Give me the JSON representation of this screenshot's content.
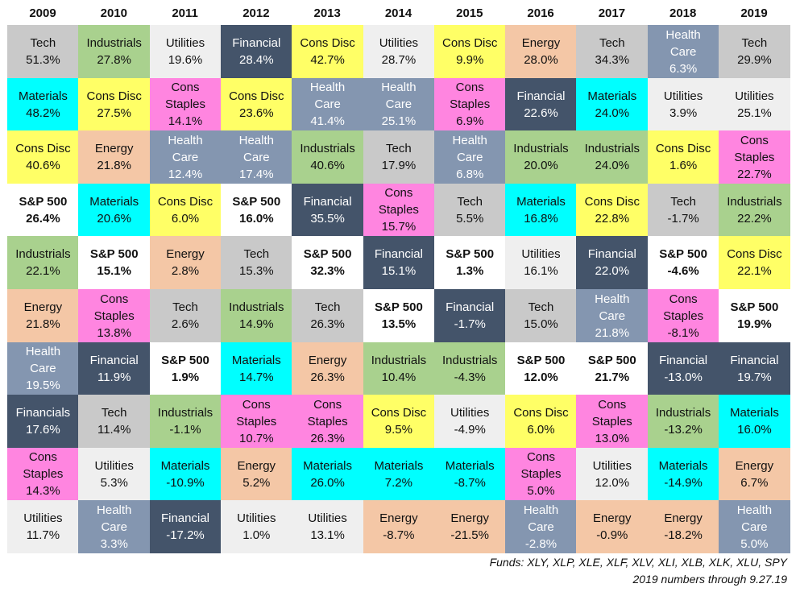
{
  "chart_data": {
    "type": "table",
    "years": [
      "2009",
      "2010",
      "2011",
      "2012",
      "2013",
      "2014",
      "2015",
      "2016",
      "2017",
      "2018",
      "2019"
    ],
    "colors": {
      "Tech": "#c9c9c9",
      "Industrials": "#a9d18e",
      "Utilities": "#efefef",
      "Financial": "#44546a",
      "Cons Disc": "#ffff66",
      "Energy": "#f4c7a6",
      "Health Care": "#8496b0",
      "Materials": "#00ffff",
      "Cons Staples": "#ff85e0",
      "S&P 500": "#ffffff"
    },
    "columns": [
      [
        {
          "sector": "Tech",
          "return": "51.3%",
          "color_key": "Tech"
        },
        {
          "sector": "Materials",
          "return": "48.2%",
          "color_key": "Materials"
        },
        {
          "sector": "Cons Disc",
          "return": "40.6%",
          "color_key": "Cons Disc"
        },
        {
          "sector": "S&P 500",
          "return": "26.4%",
          "color_key": "S&P 500"
        },
        {
          "sector": "Industrials",
          "return": "22.1%",
          "color_key": "Industrials"
        },
        {
          "sector": "Energy",
          "return": "21.8%",
          "color_key": "Energy"
        },
        {
          "sector": "Health\nCare",
          "return": "19.5%",
          "color_key": "Health Care"
        },
        {
          "sector": "Financials",
          "return": "17.6%",
          "color_key": "Financial"
        },
        {
          "sector": "Cons\nStaples",
          "return": "14.3%",
          "color_key": "Cons Staples"
        },
        {
          "sector": "Utilities",
          "return": "11.7%",
          "color_key": "Utilities"
        }
      ],
      [
        {
          "sector": "Industrials",
          "return": "27.8%",
          "color_key": "Industrials"
        },
        {
          "sector": "Cons Disc",
          "return": "27.5%",
          "color_key": "Cons Disc"
        },
        {
          "sector": "Energy",
          "return": "21.8%",
          "color_key": "Energy"
        },
        {
          "sector": "Materials",
          "return": "20.6%",
          "color_key": "Materials"
        },
        {
          "sector": "S&P 500",
          "return": "15.1%",
          "color_key": "S&P 500"
        },
        {
          "sector": "Cons\nStaples",
          "return": "13.8%",
          "color_key": "Cons Staples"
        },
        {
          "sector": "Financial",
          "return": "11.9%",
          "color_key": "Financial"
        },
        {
          "sector": "Tech",
          "return": "11.4%",
          "color_key": "Tech"
        },
        {
          "sector": "Utilities",
          "return": "5.3%",
          "color_key": "Utilities"
        },
        {
          "sector": "Health\nCare",
          "return": "3.3%",
          "color_key": "Health Care"
        }
      ],
      [
        {
          "sector": "Utilities",
          "return": "19.6%",
          "color_key": "Utilities"
        },
        {
          "sector": "Cons\nStaples",
          "return": "14.1%",
          "color_key": "Cons Staples"
        },
        {
          "sector": "Health\nCare",
          "return": "12.4%",
          "color_key": "Health Care"
        },
        {
          "sector": "Cons Disc",
          "return": "6.0%",
          "color_key": "Cons Disc"
        },
        {
          "sector": "Energy",
          "return": "2.8%",
          "color_key": "Energy"
        },
        {
          "sector": "Tech",
          "return": "2.6%",
          "color_key": "Tech"
        },
        {
          "sector": "S&P 500",
          "return": "1.9%",
          "color_key": "S&P 500"
        },
        {
          "sector": "Industrials",
          "return": "-1.1%",
          "color_key": "Industrials"
        },
        {
          "sector": "Materials",
          "return": "-10.9%",
          "color_key": "Materials"
        },
        {
          "sector": "Financial",
          "return": "-17.2%",
          "color_key": "Financial"
        }
      ],
      [
        {
          "sector": "Financial",
          "return": "28.4%",
          "color_key": "Financial"
        },
        {
          "sector": "Cons Disc",
          "return": "23.6%",
          "color_key": "Cons Disc"
        },
        {
          "sector": "Health\nCare",
          "return": "17.4%",
          "color_key": "Health Care"
        },
        {
          "sector": "S&P 500",
          "return": "16.0%",
          "color_key": "S&P 500"
        },
        {
          "sector": "Tech",
          "return": "15.3%",
          "color_key": "Tech"
        },
        {
          "sector": "Industrials",
          "return": "14.9%",
          "color_key": "Industrials"
        },
        {
          "sector": "Materials",
          "return": "14.7%",
          "color_key": "Materials"
        },
        {
          "sector": "Cons\nStaples",
          "return": "10.7%",
          "color_key": "Cons Staples"
        },
        {
          "sector": "Energy",
          "return": "5.2%",
          "color_key": "Energy"
        },
        {
          "sector": "Utilities",
          "return": "1.0%",
          "color_key": "Utilities"
        }
      ],
      [
        {
          "sector": "Cons Disc",
          "return": "42.7%",
          "color_key": "Cons Disc"
        },
        {
          "sector": "Health\nCare",
          "return": "41.4%",
          "color_key": "Health Care"
        },
        {
          "sector": "Industrials",
          "return": "40.6%",
          "color_key": "Industrials"
        },
        {
          "sector": "Financial",
          "return": "35.5%",
          "color_key": "Financial"
        },
        {
          "sector": "S&P 500",
          "return": "32.3%",
          "color_key": "S&P 500"
        },
        {
          "sector": "Tech",
          "return": "26.3%",
          "color_key": "Tech"
        },
        {
          "sector": "Energy",
          "return": "26.3%",
          "color_key": "Energy"
        },
        {
          "sector": "Cons\nStaples",
          "return": "26.3%",
          "color_key": "Cons Staples"
        },
        {
          "sector": "Materials",
          "return": "26.0%",
          "color_key": "Materials"
        },
        {
          "sector": "Utilities",
          "return": "13.1%",
          "color_key": "Utilities"
        }
      ],
      [
        {
          "sector": "Utilities",
          "return": "28.7%",
          "color_key": "Utilities"
        },
        {
          "sector": "Health\nCare",
          "return": "25.1%",
          "color_key": "Health Care"
        },
        {
          "sector": "Tech",
          "return": "17.9%",
          "color_key": "Tech"
        },
        {
          "sector": "Cons\nStaples",
          "return": "15.7%",
          "color_key": "Cons Staples"
        },
        {
          "sector": "Financial",
          "return": "15.1%",
          "color_key": "Financial"
        },
        {
          "sector": "S&P 500",
          "return": "13.5%",
          "color_key": "S&P 500"
        },
        {
          "sector": "Industrials",
          "return": "10.4%",
          "color_key": "Industrials"
        },
        {
          "sector": "Cons Disc",
          "return": "9.5%",
          "color_key": "Cons Disc"
        },
        {
          "sector": "Materials",
          "return": "7.2%",
          "color_key": "Materials"
        },
        {
          "sector": "Energy",
          "return": "-8.7%",
          "color_key": "Energy"
        }
      ],
      [
        {
          "sector": "Cons Disc",
          "return": "9.9%",
          "color_key": "Cons Disc"
        },
        {
          "sector": "Cons\nStaples",
          "return": "6.9%",
          "color_key": "Cons Staples"
        },
        {
          "sector": "Health\nCare",
          "return": "6.8%",
          "color_key": "Health Care"
        },
        {
          "sector": "Tech",
          "return": "5.5%",
          "color_key": "Tech"
        },
        {
          "sector": "S&P 500",
          "return": "1.3%",
          "color_key": "S&P 500"
        },
        {
          "sector": "Financial",
          "return": "-1.7%",
          "color_key": "Financial"
        },
        {
          "sector": "Industrials",
          "return": "-4.3%",
          "color_key": "Industrials"
        },
        {
          "sector": "Utilities",
          "return": "-4.9%",
          "color_key": "Utilities"
        },
        {
          "sector": "Materials",
          "return": "-8.7%",
          "color_key": "Materials"
        },
        {
          "sector": "Energy",
          "return": "-21.5%",
          "color_key": "Energy"
        }
      ],
      [
        {
          "sector": "Energy",
          "return": "28.0%",
          "color_key": "Energy"
        },
        {
          "sector": "Financial",
          "return": "22.6%",
          "color_key": "Financial"
        },
        {
          "sector": "Industrials",
          "return": "20.0%",
          "color_key": "Industrials"
        },
        {
          "sector": "Materials",
          "return": "16.8%",
          "color_key": "Materials"
        },
        {
          "sector": "Utilities",
          "return": "16.1%",
          "color_key": "Utilities"
        },
        {
          "sector": "Tech",
          "return": "15.0%",
          "color_key": "Tech"
        },
        {
          "sector": "S&P 500",
          "return": "12.0%",
          "color_key": "S&P 500"
        },
        {
          "sector": "Cons Disc",
          "return": "6.0%",
          "color_key": "Cons Disc"
        },
        {
          "sector": "Cons\nStaples",
          "return": "5.0%",
          "color_key": "Cons Staples"
        },
        {
          "sector": "Health\nCare",
          "return": "-2.8%",
          "color_key": "Health Care"
        }
      ],
      [
        {
          "sector": "Tech",
          "return": "34.3%",
          "color_key": "Tech"
        },
        {
          "sector": "Materials",
          "return": "24.0%",
          "color_key": "Materials"
        },
        {
          "sector": "Industrials",
          "return": "24.0%",
          "color_key": "Industrials"
        },
        {
          "sector": "Cons Disc",
          "return": "22.8%",
          "color_key": "Cons Disc"
        },
        {
          "sector": "Financial",
          "return": "22.0%",
          "color_key": "Financial"
        },
        {
          "sector": "Health\nCare",
          "return": "21.8%",
          "color_key": "Health Care"
        },
        {
          "sector": "S&P 500",
          "return": "21.7%",
          "color_key": "S&P 500"
        },
        {
          "sector": "Cons\nStaples",
          "return": "13.0%",
          "color_key": "Cons Staples"
        },
        {
          "sector": "Utilities",
          "return": "12.0%",
          "color_key": "Utilities"
        },
        {
          "sector": "Energy",
          "return": "-0.9%",
          "color_key": "Energy"
        }
      ],
      [
        {
          "sector": "Health\nCare",
          "return": "6.3%",
          "color_key": "Health Care"
        },
        {
          "sector": "Utilities",
          "return": "3.9%",
          "color_key": "Utilities"
        },
        {
          "sector": "Cons Disc",
          "return": "1.6%",
          "color_key": "Cons Disc"
        },
        {
          "sector": "Tech",
          "return": "-1.7%",
          "color_key": "Tech"
        },
        {
          "sector": "S&P 500",
          "return": "-4.6%",
          "color_key": "S&P 500"
        },
        {
          "sector": "Cons\nStaples",
          "return": "-8.1%",
          "color_key": "Cons Staples"
        },
        {
          "sector": "Financial",
          "return": "-13.0%",
          "color_key": "Financial"
        },
        {
          "sector": "Industrials",
          "return": "-13.2%",
          "color_key": "Industrials"
        },
        {
          "sector": "Materials",
          "return": "-14.9%",
          "color_key": "Materials"
        },
        {
          "sector": "Energy",
          "return": "-18.2%",
          "color_key": "Energy"
        }
      ],
      [
        {
          "sector": "Tech",
          "return": "29.9%",
          "color_key": "Tech"
        },
        {
          "sector": "Utilities",
          "return": "25.1%",
          "color_key": "Utilities"
        },
        {
          "sector": "Cons\nStaples",
          "return": "22.7%",
          "color_key": "Cons Staples"
        },
        {
          "sector": "Industrials",
          "return": "22.2%",
          "color_key": "Industrials"
        },
        {
          "sector": "Cons Disc",
          "return": "22.1%",
          "color_key": "Cons Disc"
        },
        {
          "sector": "S&P 500",
          "return": "19.9%",
          "color_key": "S&P 500"
        },
        {
          "sector": "Financial",
          "return": "19.7%",
          "color_key": "Financial"
        },
        {
          "sector": "Materials",
          "return": "16.0%",
          "color_key": "Materials"
        },
        {
          "sector": "Energy",
          "return": "6.7%",
          "color_key": "Energy"
        },
        {
          "sector": "Health\nCare",
          "return": "5.0%",
          "color_key": "Health Care"
        }
      ]
    ]
  },
  "footnote": {
    "funds": "Funds:  XLY, XLP, XLE, XLF, XLV, XLI, XLB, XLK, XLU, SPY",
    "through": "2019 numbers through 9.27.19"
  }
}
